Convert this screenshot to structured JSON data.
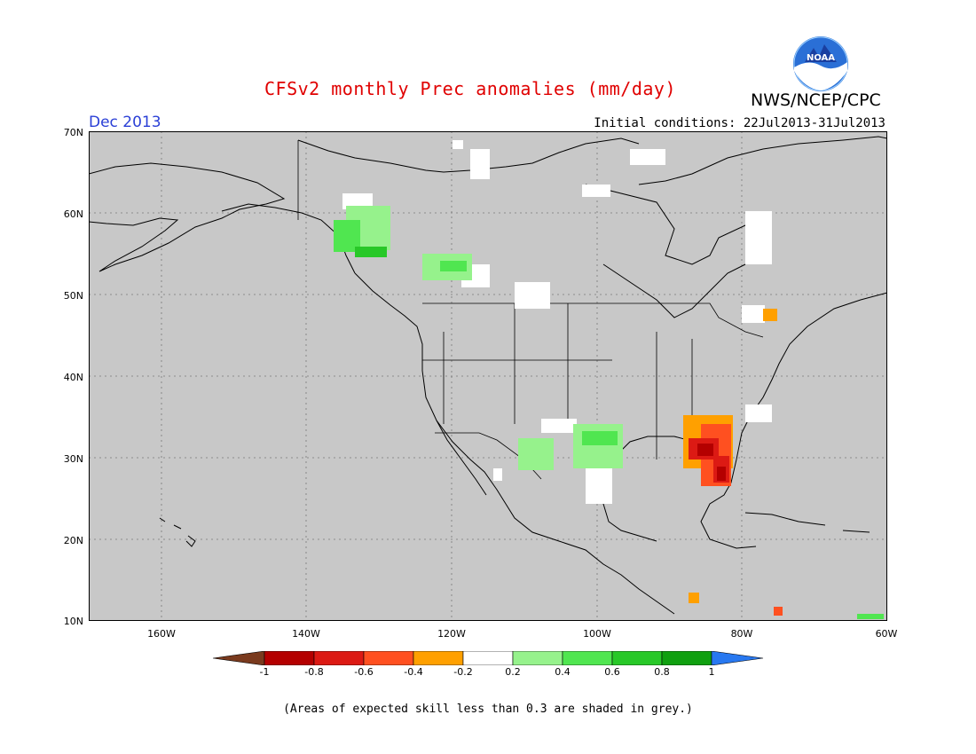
{
  "header": {
    "title": "CFSv2 monthly Prec anomalies (mm/day)",
    "org": "NWS/NCEP/CPC",
    "logo_text": "NOAA",
    "valid_month": "Dec 2013",
    "initial_conditions": "Initial conditions: 22Jul2013-31Jul2013"
  },
  "map": {
    "lat_ticks": [
      "70N",
      "60N",
      "50N",
      "40N",
      "30N",
      "20N",
      "10N"
    ],
    "lon_ticks": [
      "160W",
      "140W",
      "120W",
      "100W",
      "80W",
      "60W"
    ],
    "background_color": "#c8c8c8",
    "anomaly_regions": [
      {
        "name": "Southeast US / Florida",
        "level": "-0.4 to -0.8",
        "color": "#e82a10"
      },
      {
        "name": "Texas / Northern Mexico",
        "level": "0.2 to 0.4",
        "color": "#96f28c"
      },
      {
        "name": "Alaska Panhandle / British Columbia",
        "level": "0.2 to 0.6",
        "color": "#50e650"
      }
    ]
  },
  "colorbar": {
    "labels": [
      "-1",
      "-0.8",
      "-0.6",
      "-0.4",
      "-0.2",
      "0.2",
      "0.4",
      "0.6",
      "0.8",
      "1"
    ],
    "colors": [
      "#7a3a1e",
      "#b40000",
      "#dc1a14",
      "#ff5020",
      "#ffa000",
      "#ffffff",
      "#96f28c",
      "#50e650",
      "#28c828",
      "#10a010",
      "#2878f0"
    ]
  },
  "footnote": "(Areas of expected skill less than 0.3 are shaded in grey.)"
}
